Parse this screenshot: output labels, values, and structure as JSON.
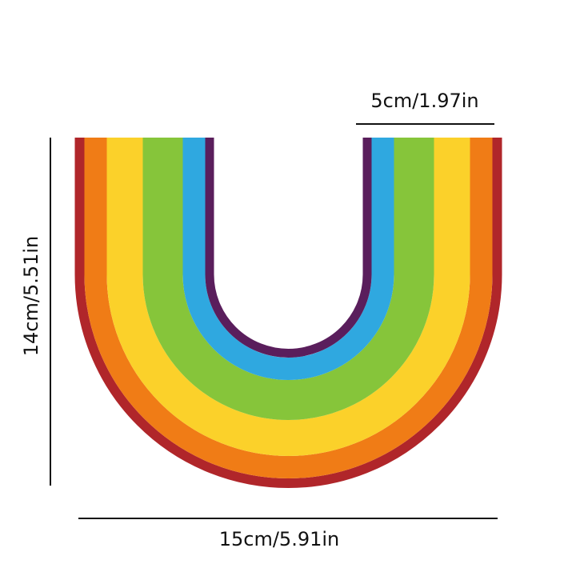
{
  "dimensions": {
    "width": "5cm/1.97in",
    "height": "14cm/5.51in",
    "length": "15cm/5.91in"
  }
}
